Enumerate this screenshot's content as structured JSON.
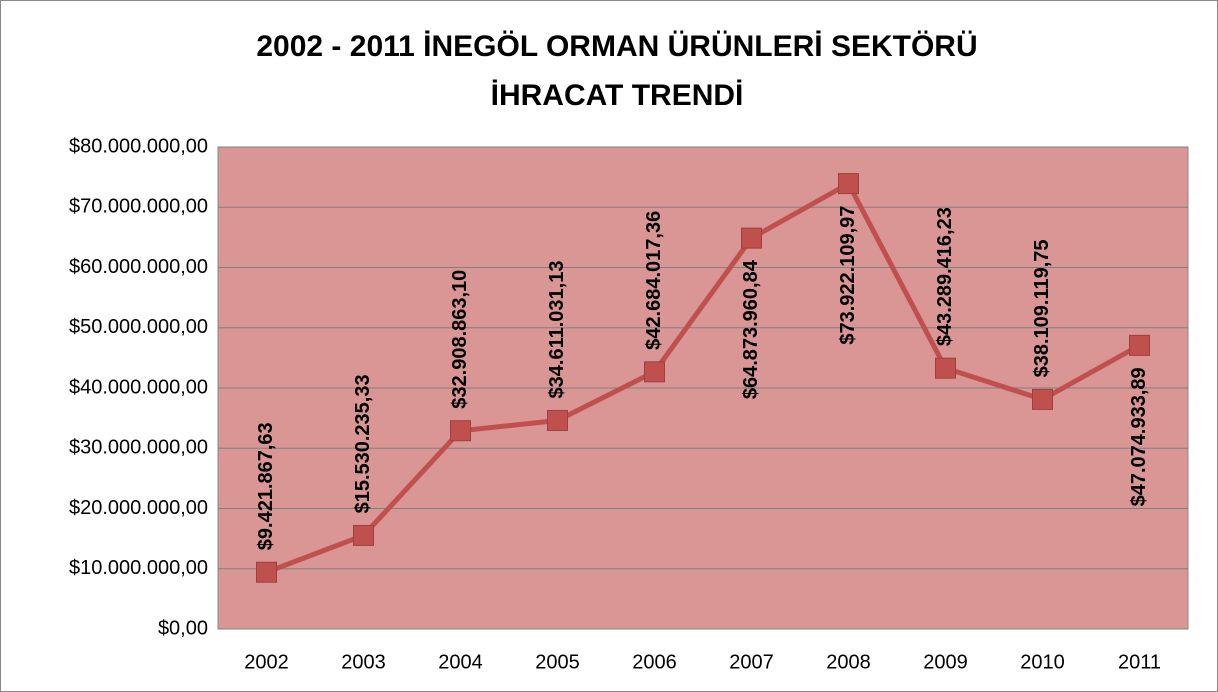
{
  "chart_data": {
    "type": "line",
    "title": [
      "2002 - 2011 İNEGÖL ORMAN ÜRÜNLERİ SEKTÖRÜ",
      "İHRACAT TRENDİ"
    ],
    "categories": [
      "2002",
      "2003",
      "2004",
      "2005",
      "2006",
      "2007",
      "2008",
      "2009",
      "2010",
      "2011"
    ],
    "series": [
      {
        "name": "İhracat",
        "color": "#c0504d",
        "values": [
          9421867.63,
          15530235.33,
          32908863.1,
          34611031.13,
          42684017.36,
          64873960.84,
          73922109.97,
          43289416.23,
          38109119.75,
          47074933.89
        ],
        "value_labels": [
          "$9.421.867,63",
          "$15.530.235,33",
          "$32.908.863,10",
          "$34.611.031,13",
          "$42.684.017,36",
          "$64.873.960,84",
          "$73.922.109,97",
          "$43.289.416,23",
          "$38.109.119,75",
          "$47.074.933,89"
        ]
      }
    ],
    "ylim": [
      0,
      80000000
    ],
    "yticks": [
      {
        "value": 0,
        "label": "$0,00"
      },
      {
        "value": 10000000,
        "label": "$10.000.000,00"
      },
      {
        "value": 20000000,
        "label": "$20.000.000,00"
      },
      {
        "value": 30000000,
        "label": "$30.000.000,00"
      },
      {
        "value": 40000000,
        "label": "$40.000.000,00"
      },
      {
        "value": 50000000,
        "label": "$50.000.000,00"
      },
      {
        "value": 60000000,
        "label": "$60.000.000,00"
      },
      {
        "value": 70000000,
        "label": "$70.000.000,00"
      },
      {
        "value": 80000000,
        "label": "$80.000.000,00"
      }
    ],
    "grid": true,
    "plot_background": "#d99694"
  }
}
